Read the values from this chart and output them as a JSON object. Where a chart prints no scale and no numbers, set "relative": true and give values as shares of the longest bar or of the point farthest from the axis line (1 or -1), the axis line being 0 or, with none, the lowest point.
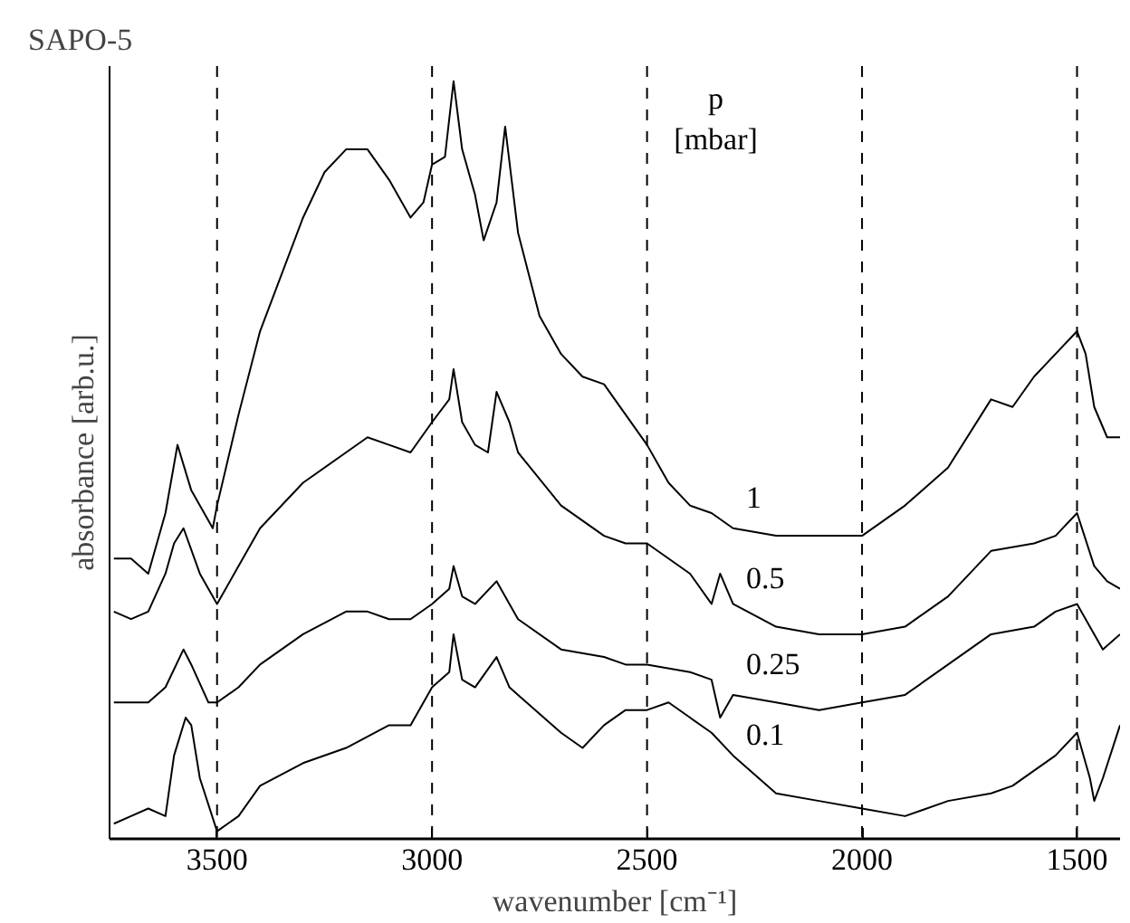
{
  "chart_data": {
    "type": "line",
    "title": "SAPO-5",
    "xlabel": "wavenumber [cm⁻¹]",
    "ylabel": "absorbance [arb.u.]",
    "legend_title": "p [mbar]",
    "relative": true,
    "xlim": [
      3750,
      1400
    ],
    "xticks": [
      3500,
      3000,
      2500,
      2000,
      1500
    ],
    "grid": false,
    "marker": "none",
    "line_style": "solid",
    "ref_lines": [
      {
        "axis": "x",
        "value": 3500,
        "color": "#000000",
        "line_style": "dashed"
      },
      {
        "axis": "x",
        "value": 3000,
        "color": "#000000",
        "line_style": "dashed"
      },
      {
        "axis": "x",
        "value": 2500,
        "color": "#000000",
        "line_style": "dashed"
      },
      {
        "axis": "x",
        "value": 2000,
        "color": "#000000",
        "line_style": "dashed"
      },
      {
        "axis": "x",
        "value": 1500,
        "color": "#000000",
        "line_style": "dashed"
      }
    ],
    "series": [
      {
        "name": "1",
        "color": "#000000",
        "x": [
          3740,
          3700,
          3660,
          3620,
          3592,
          3560,
          3510,
          3500,
          3450,
          3400,
          3300,
          3250,
          3200,
          3150,
          3100,
          3050,
          3020,
          3000,
          2970,
          2950,
          2930,
          2900,
          2880,
          2850,
          2830,
          2800,
          2750,
          2700,
          2650,
          2600,
          2550,
          2500,
          2450,
          2400,
          2350,
          2300,
          2200,
          2100,
          2000,
          1900,
          1800,
          1700,
          1650,
          1600,
          1550,
          1500,
          1480,
          1460,
          1430,
          1400
        ],
        "values": [
          0.37,
          0.37,
          0.35,
          0.43,
          0.52,
          0.46,
          0.41,
          0.44,
          0.56,
          0.67,
          0.82,
          0.88,
          0.91,
          0.91,
          0.87,
          0.82,
          0.84,
          0.89,
          0.9,
          1.0,
          0.91,
          0.85,
          0.79,
          0.84,
          0.94,
          0.8,
          0.69,
          0.64,
          0.61,
          0.6,
          0.56,
          0.52,
          0.47,
          0.44,
          0.43,
          0.41,
          0.4,
          0.4,
          0.4,
          0.44,
          0.49,
          0.58,
          0.57,
          0.61,
          0.64,
          0.67,
          0.64,
          0.57,
          0.53,
          0.53
        ]
      },
      {
        "name": "0.5",
        "color": "#000000",
        "x": [
          3740,
          3700,
          3660,
          3620,
          3600,
          3578,
          3540,
          3500,
          3450,
          3400,
          3300,
          3200,
          3150,
          3100,
          3050,
          3000,
          2960,
          2950,
          2930,
          2900,
          2870,
          2850,
          2820,
          2800,
          2700,
          2600,
          2550,
          2500,
          2400,
          2350,
          2330,
          2300,
          2200,
          2100,
          2000,
          1900,
          1800,
          1700,
          1600,
          1550,
          1500,
          1460,
          1430,
          1400
        ],
        "values": [
          0.3,
          0.29,
          0.3,
          0.35,
          0.39,
          0.41,
          0.35,
          0.31,
          0.36,
          0.41,
          0.47,
          0.51,
          0.53,
          0.52,
          0.51,
          0.55,
          0.58,
          0.62,
          0.55,
          0.52,
          0.51,
          0.59,
          0.55,
          0.51,
          0.44,
          0.4,
          0.39,
          0.39,
          0.35,
          0.31,
          0.35,
          0.31,
          0.28,
          0.27,
          0.27,
          0.28,
          0.32,
          0.38,
          0.39,
          0.4,
          0.43,
          0.36,
          0.34,
          0.33
        ]
      },
      {
        "name": "0.25",
        "color": "#000000",
        "x": [
          3740,
          3700,
          3660,
          3620,
          3578,
          3560,
          3520,
          3500,
          3450,
          3400,
          3300,
          3200,
          3150,
          3100,
          3050,
          3000,
          2960,
          2950,
          2930,
          2900,
          2850,
          2820,
          2800,
          2700,
          2600,
          2550,
          2500,
          2400,
          2350,
          2330,
          2300,
          2200,
          2100,
          2000,
          1900,
          1800,
          1700,
          1600,
          1550,
          1500,
          1460,
          1440,
          1400
        ],
        "values": [
          0.18,
          0.18,
          0.18,
          0.2,
          0.25,
          0.23,
          0.18,
          0.18,
          0.2,
          0.23,
          0.27,
          0.3,
          0.3,
          0.29,
          0.29,
          0.31,
          0.33,
          0.36,
          0.32,
          0.31,
          0.34,
          0.31,
          0.29,
          0.25,
          0.24,
          0.23,
          0.23,
          0.22,
          0.21,
          0.16,
          0.19,
          0.18,
          0.17,
          0.18,
          0.19,
          0.23,
          0.27,
          0.28,
          0.3,
          0.31,
          0.27,
          0.25,
          0.27
        ]
      },
      {
        "name": "0.1",
        "color": "#000000",
        "x": [
          3740,
          3700,
          3660,
          3620,
          3600,
          3573,
          3560,
          3540,
          3500,
          3450,
          3400,
          3300,
          3200,
          3100,
          3050,
          3000,
          2960,
          2950,
          2930,
          2900,
          2850,
          2820,
          2800,
          2700,
          2650,
          2600,
          2550,
          2500,
          2450,
          2400,
          2350,
          2300,
          2200,
          2100,
          2000,
          1900,
          1800,
          1700,
          1650,
          1600,
          1550,
          1500,
          1470,
          1460,
          1440,
          1400
        ],
        "values": [
          0.02,
          0.03,
          0.04,
          0.03,
          0.11,
          0.16,
          0.15,
          0.08,
          0.01,
          0.03,
          0.07,
          0.1,
          0.12,
          0.15,
          0.15,
          0.2,
          0.22,
          0.27,
          0.21,
          0.2,
          0.24,
          0.2,
          0.19,
          0.14,
          0.12,
          0.15,
          0.17,
          0.17,
          0.18,
          0.16,
          0.14,
          0.11,
          0.06,
          0.05,
          0.04,
          0.03,
          0.05,
          0.06,
          0.07,
          0.09,
          0.11,
          0.14,
          0.08,
          0.05,
          0.08,
          0.15
        ]
      }
    ]
  }
}
